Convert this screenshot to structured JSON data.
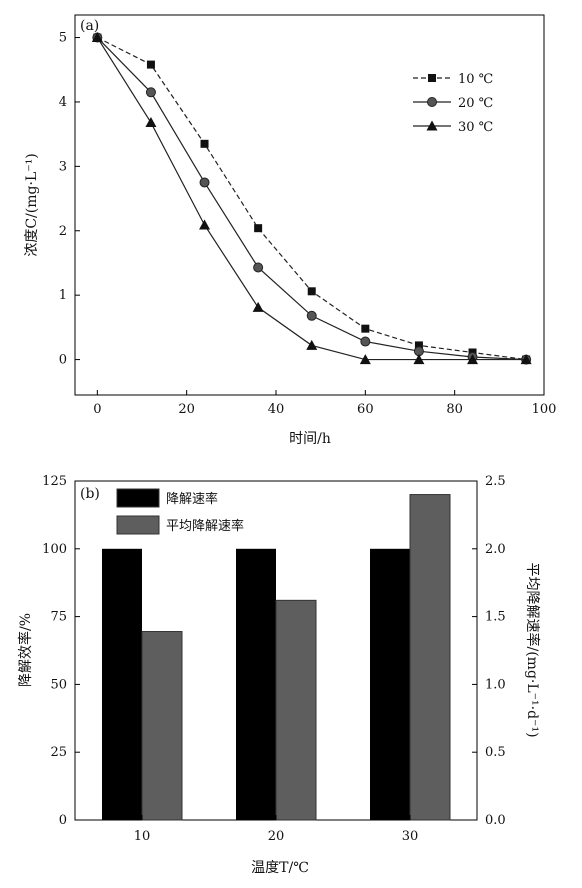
{
  "chart_data": [
    {
      "type": "line",
      "panel_label": "(a)",
      "xlabel": "时间/h",
      "ylabel": "浓度C/(mg·L⁻¹)",
      "xlim": [
        -5,
        100
      ],
      "ylim": [
        -0.55,
        5.35
      ],
      "xticks": [
        0,
        20,
        40,
        60,
        80,
        100
      ],
      "yticks": [
        0,
        1,
        2,
        3,
        4,
        5
      ],
      "legend_position": "top-right",
      "grid": false,
      "series": [
        {
          "name": "10 ℃",
          "marker": "square",
          "dash": "dashed",
          "x": [
            0,
            12,
            24,
            36,
            48,
            60,
            72,
            84,
            96
          ],
          "y": [
            5.0,
            4.58,
            3.35,
            2.04,
            1.06,
            0.48,
            0.22,
            0.11,
            0.0
          ]
        },
        {
          "name": "20 ℃",
          "marker": "circle",
          "dash": "solid",
          "x": [
            0,
            12,
            24,
            36,
            48,
            60,
            72,
            84,
            96
          ],
          "y": [
            5.0,
            4.15,
            2.75,
            1.43,
            0.68,
            0.28,
            0.13,
            0.04,
            0.0
          ]
        },
        {
          "name": "30 ℃",
          "marker": "triangle",
          "dash": "solid",
          "x": [
            0,
            12,
            24,
            36,
            48,
            60,
            72,
            84,
            96
          ],
          "y": [
            5.0,
            3.68,
            2.09,
            0.81,
            0.22,
            0.0,
            0.0,
            0.0,
            0.0
          ]
        }
      ]
    },
    {
      "type": "bar",
      "panel_label": "(b)",
      "xlabel": "温度T/℃",
      "ylabel": "降解效率/%",
      "y2label": "平均降解速率/(mg·L⁻¹·d⁻¹)",
      "categories": [
        "10",
        "20",
        "30"
      ],
      "ylim": [
        0,
        125
      ],
      "y2lim": [
        0,
        2.5
      ],
      "yticks": [
        0,
        25,
        50,
        75,
        100,
        125
      ],
      "y2ticks": [
        "0.0",
        "0.5",
        "1.0",
        "1.5",
        "2.0",
        "2.5"
      ],
      "legend_position": "top-left",
      "series": [
        {
          "name": "降解速率",
          "axis": "left",
          "color": "#000000",
          "values": [
            100,
            100,
            100
          ]
        },
        {
          "name": "平均降解速率",
          "axis": "right",
          "color": "#5e5e5e",
          "values": [
            1.39,
            1.62,
            2.4
          ]
        }
      ]
    }
  ]
}
